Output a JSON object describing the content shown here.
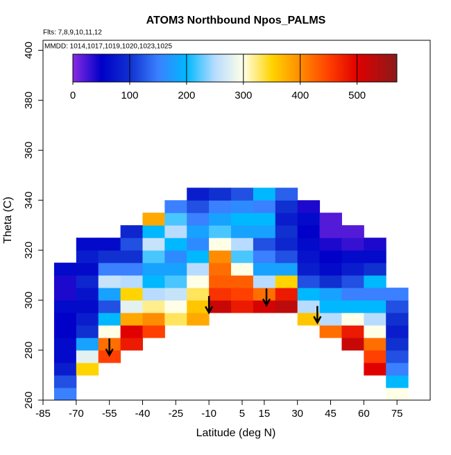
{
  "chart_data": {
    "type": "heatmap",
    "title": "ATOM3 Northbound Npos_PALMS",
    "annotations": [
      "Flts: 7,8,9,10,11,12",
      "MMDD: 1014,1017,1019,1020,1023,1025"
    ],
    "xlabel": "Latitude (deg N)",
    "ylabel": "Theta (C)",
    "xlim": [
      -85,
      90
    ],
    "ylim": [
      260,
      404
    ],
    "xticks": [
      -85,
      -70,
      -55,
      -40,
      -25,
      -10,
      5,
      15,
      30,
      45,
      60,
      75
    ],
    "yticks": [
      260,
      280,
      300,
      320,
      340,
      360,
      380,
      400
    ],
    "x": [
      -75,
      -65,
      -55,
      -45,
      -35,
      -25,
      -15,
      -5,
      5,
      15,
      25,
      35,
      45,
      55,
      65,
      75
    ],
    "y": [
      262.5,
      267.5,
      272.5,
      277.5,
      282.5,
      287.5,
      292.5,
      297.5,
      302.5,
      307.5,
      312.5,
      317.5,
      322.5,
      327.5,
      332.5,
      337.5,
      342.5
    ],
    "z": [
      [
        150,
        120,
        80,
        60,
        60,
        50,
        50,
        60,
        40,
        40,
        60,
        null,
        null,
        null,
        null,
        null,
        null
      ],
      [
        null,
        null,
        350,
        280,
        180,
        100,
        80,
        60,
        70,
        90,
        60,
        80,
        60,
        null,
        null,
        null,
        null
      ],
      [
        null,
        null,
        null,
        450,
        420,
        300,
        200,
        120,
        180,
        260,
        150,
        100,
        60,
        null,
        null,
        null,
        null
      ],
      [
        null,
        null,
        null,
        null,
        480,
        500,
        380,
        280,
        350,
        250,
        150,
        100,
        120,
        90,
        null,
        null,
        null
      ],
      [
        null,
        null,
        null,
        null,
        null,
        450,
        400,
        320,
        250,
        200,
        180,
        220,
        260,
        200,
        380,
        null,
        null
      ],
      [
        null,
        null,
        null,
        null,
        null,
        null,
        330,
        300,
        260,
        220,
        180,
        160,
        200,
        250,
        220,
        150,
        null
      ],
      [
        null,
        null,
        null,
        null,
        null,
        null,
        380,
        360,
        330,
        300,
        250,
        200,
        160,
        180,
        150,
        120,
        80
      ],
      [
        null,
        null,
        null,
        null,
        null,
        null,
        null,
        520,
        460,
        430,
        420,
        400,
        300,
        220,
        180,
        150,
        100
      ],
      [
        null,
        null,
        null,
        null,
        null,
        null,
        null,
        480,
        450,
        430,
        300,
        220,
        250,
        180,
        200,
        160,
        120
      ],
      [
        null,
        null,
        null,
        null,
        null,
        null,
        null,
        510,
        420,
        250,
        180,
        150,
        120,
        180,
        200,
        150,
        200
      ],
      [
        null,
        null,
        null,
        null,
        null,
        null,
        null,
        530,
        480,
        350,
        180,
        120,
        90,
        100,
        80,
        100,
        130
      ],
      [
        null,
        null,
        null,
        null,
        null,
        null,
        360,
        250,
        200,
        120,
        80,
        70,
        60,
        50,
        60,
        40,
        null
      ],
      [
        null,
        null,
        null,
        null,
        null,
        420,
        250,
        200,
        180,
        100,
        60,
        50,
        40,
        20,
        20,
        null,
        null
      ],
      [
        null,
        null,
        null,
        null,
        520,
        480,
        300,
        200,
        150,
        120,
        80,
        60,
        30,
        20,
        null,
        null,
        null
      ],
      [
        null,
        null,
        500,
        450,
        420,
        300,
        250,
        200,
        150,
        200,
        100,
        60,
        40,
        null,
        null,
        null,
        null
      ],
      [
        300,
        200,
        150,
        120,
        100,
        80,
        100,
        120,
        150,
        null,
        null,
        null,
        null,
        null,
        null,
        null,
        null
      ]
    ],
    "zlim": [
      0,
      570
    ],
    "zticks": [
      0,
      100,
      200,
      300,
      400,
      500
    ],
    "colorscale": [
      {
        "value": 0,
        "color": "#8a2be2"
      },
      {
        "value": 50,
        "color": "#0000c8"
      },
      {
        "value": 100,
        "color": "#1030d0"
      },
      {
        "value": 150,
        "color": "#3a80ff"
      },
      {
        "value": 200,
        "color": "#00b8ff"
      },
      {
        "value": 250,
        "color": "#b8dcff"
      },
      {
        "value": 300,
        "color": "#ffffe8"
      },
      {
        "value": 350,
        "color": "#ffd400"
      },
      {
        "value": 400,
        "color": "#ff8c00"
      },
      {
        "value": 450,
        "color": "#ff4000"
      },
      {
        "value": 500,
        "color": "#e00000"
      },
      {
        "value": 570,
        "color": "#8b1a1a"
      }
    ],
    "markers": [
      {
        "x": -55,
        "y": 278
      },
      {
        "x": -10,
        "y": 295
      },
      {
        "x": 16,
        "y": 298
      },
      {
        "x": 39,
        "y": 291
      }
    ]
  }
}
